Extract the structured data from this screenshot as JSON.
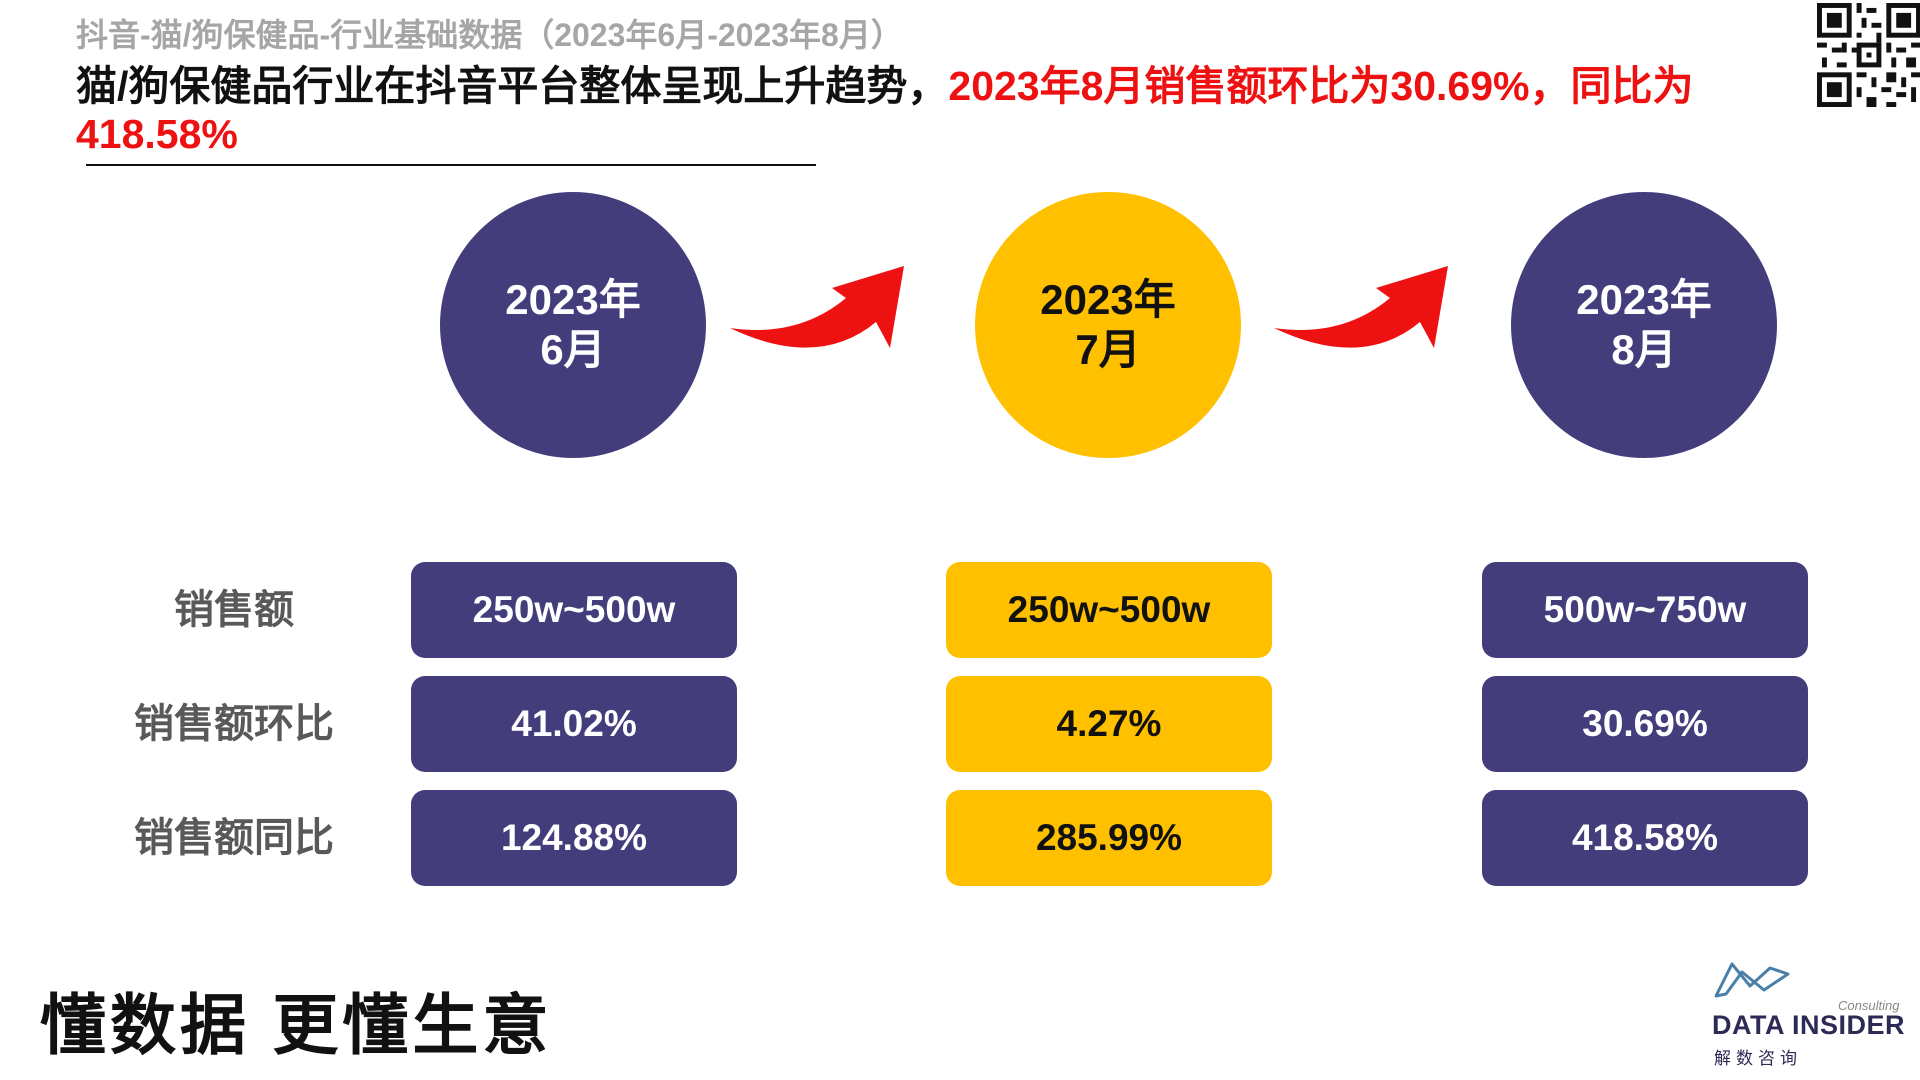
{
  "header": {
    "subtitle": "抖音-猫/狗保健品-行业基础数据（2023年6月-2023年8月）",
    "headline_black": "猫/狗保健品行业在抖音平台整体呈现上升趋势，",
    "headline_red": "2023年8月销售额环比为30.69%，同比为418.58%"
  },
  "colors": {
    "purple": "#433d7c",
    "yellow": "#ffc000",
    "red": "#ee1111",
    "gray": "#595959"
  },
  "periods": [
    {
      "year": "2023年",
      "month": "6月",
      "style": "purple"
    },
    {
      "year": "2023年",
      "month": "7月",
      "style": "yellow"
    },
    {
      "year": "2023年",
      "month": "8月",
      "style": "purple"
    }
  ],
  "rows": [
    {
      "label": "销售额",
      "values": [
        "250w~500w",
        "250w~500w",
        "500w~750w"
      ]
    },
    {
      "label": "销售额环比",
      "values": [
        "41.02%",
        "4.27%",
        "30.69%"
      ]
    },
    {
      "label": "销售额同比",
      "values": [
        "124.88%",
        "285.99%",
        "418.58%"
      ]
    }
  ],
  "footer": {
    "slogan": "懂数据 更懂生意",
    "logo_name": "DATA INSIDER",
    "logo_consulting": "Consulting",
    "logo_sub": "解数咨询"
  }
}
